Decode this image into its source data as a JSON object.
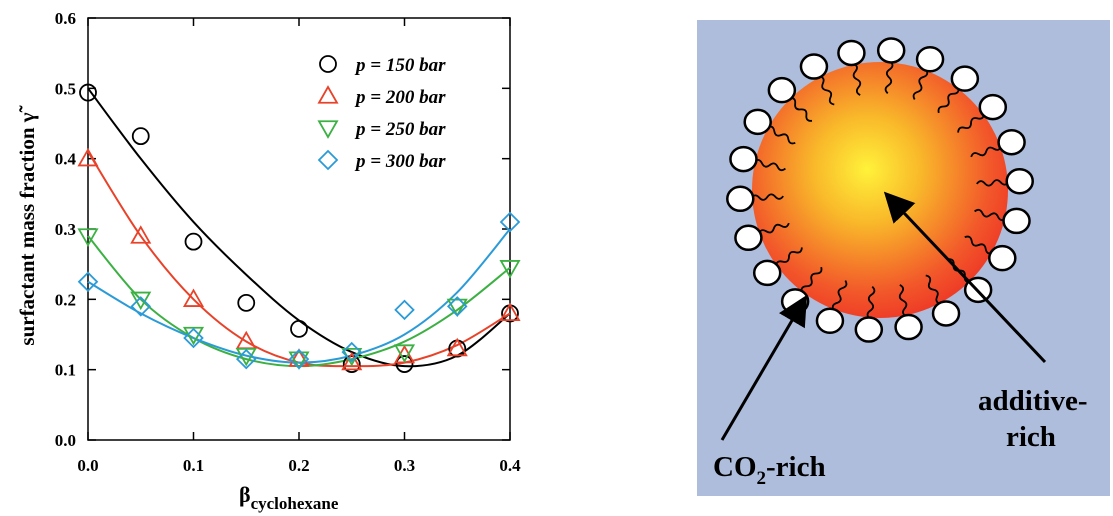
{
  "chart_data": {
    "type": "scatter",
    "xlabel": {
      "symbol": "β",
      "subscript": "cyclohexane"
    },
    "ylabel": "surfactant mass fraction γ̃",
    "x": [
      0,
      0.05,
      0.1,
      0.15,
      0.2,
      0.25,
      0.3,
      0.35,
      0.4
    ],
    "series": [
      {
        "name": "p = 150 bar",
        "color": "#000000",
        "marker": "circle",
        "values": [
          0.494,
          0.432,
          0.282,
          0.195,
          0.158,
          0.108,
          0.108,
          0.13,
          0.18
        ],
        "fit": [
          0.5,
          0.4,
          0.31,
          0.235,
          0.17,
          0.125,
          0.105,
          0.12,
          0.18
        ]
      },
      {
        "name": "p = 200 bar",
        "color": "#e8432a",
        "marker": "triangle",
        "values": [
          0.4,
          0.29,
          0.2,
          0.14,
          0.115,
          0.11,
          0.12,
          0.13,
          0.18
        ],
        "fit": [
          0.41,
          0.29,
          0.2,
          0.14,
          0.11,
          0.105,
          0.11,
          0.135,
          0.18
        ]
      },
      {
        "name": "p = 250 bar",
        "color": "#3cb043",
        "marker": "triangle-down",
        "values": [
          0.29,
          0.2,
          0.15,
          0.12,
          0.115,
          0.12,
          0.125,
          0.19,
          0.245
        ],
        "fit": [
          0.29,
          0.2,
          0.145,
          0.115,
          0.105,
          0.115,
          0.14,
          0.185,
          0.245
        ]
      },
      {
        "name": "p = 300 bar",
        "color": "#2b9bd8",
        "marker": "diamond",
        "values": [
          0.225,
          0.19,
          0.145,
          0.115,
          0.115,
          0.125,
          0.185,
          0.19,
          0.31
        ],
        "fit": [
          0.225,
          0.18,
          0.145,
          0.12,
          0.11,
          0.12,
          0.15,
          0.21,
          0.3
        ]
      }
    ],
    "xlim": [
      0,
      0.4
    ],
    "ylim": [
      0,
      0.6
    ],
    "xticks": [
      {
        "value": 0,
        "label": "0.0"
      },
      0.1,
      0.2,
      0.3,
      0.4
    ],
    "yticks": [
      {
        "value": 0,
        "label": "0.0"
      },
      0.1,
      0.2,
      0.3,
      0.4,
      0.5,
      0.6
    ],
    "legend": "upper right"
  },
  "diagram": {
    "labels": {
      "additive": [
        "additive-",
        "rich"
      ],
      "co2": {
        "main": "CO",
        "sub": "2",
        "rest": "-rich"
      }
    }
  }
}
